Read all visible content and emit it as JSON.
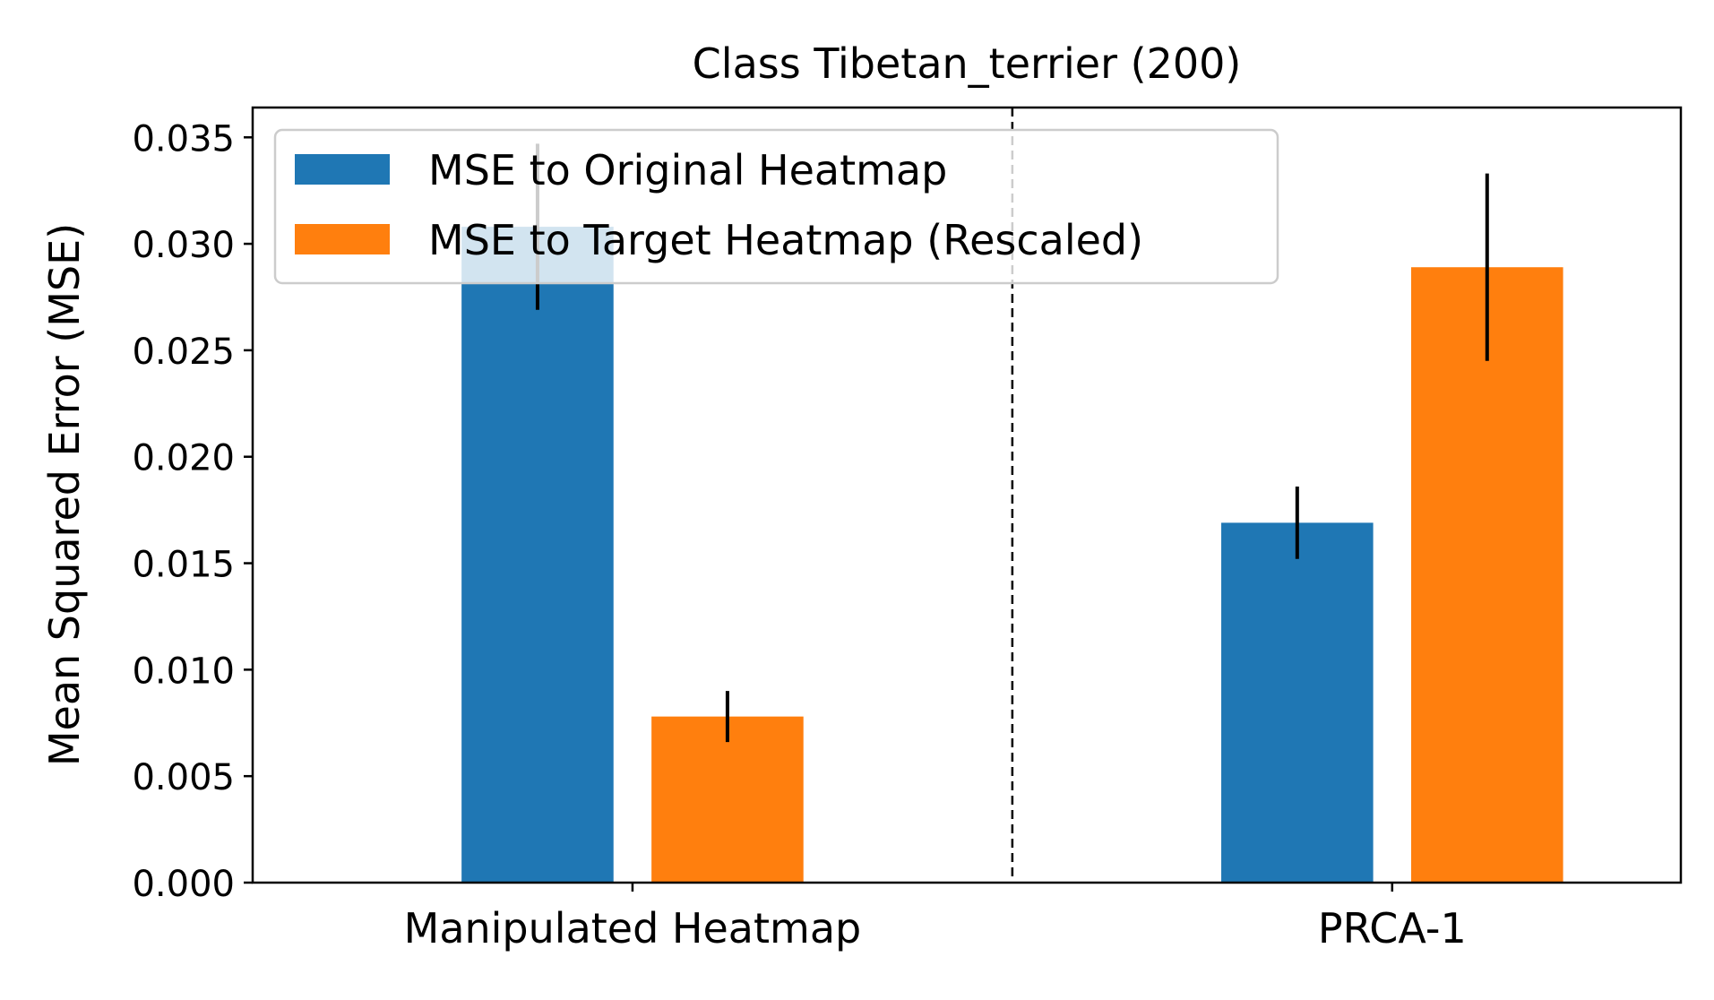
{
  "chart_data": {
    "type": "bar",
    "title": "Class Tibetan_terrier (200)",
    "xlabel": "",
    "ylabel": "Mean Squared Error (MSE)",
    "categories": [
      "Manipulated Heatmap",
      "PRCA-1"
    ],
    "series": [
      {
        "name": "MSE to Original Heatmap",
        "color": "#1f77b4",
        "values": [
          0.0308,
          0.0169
        ],
        "errors": [
          0.0039,
          0.0017
        ]
      },
      {
        "name": "MSE to Target Heatmap (Rescaled)",
        "color": "#ff7f0e",
        "values": [
          0.0078,
          0.0289
        ],
        "errors": [
          0.0012,
          0.0044
        ]
      }
    ],
    "ylim": [
      0,
      0.0364
    ],
    "yticks": [
      "0.000",
      "0.005",
      "0.010",
      "0.015",
      "0.020",
      "0.025",
      "0.030",
      "0.035"
    ],
    "grid": false,
    "legend": "upper-left",
    "separator": "dashed vertical line between groups"
  }
}
